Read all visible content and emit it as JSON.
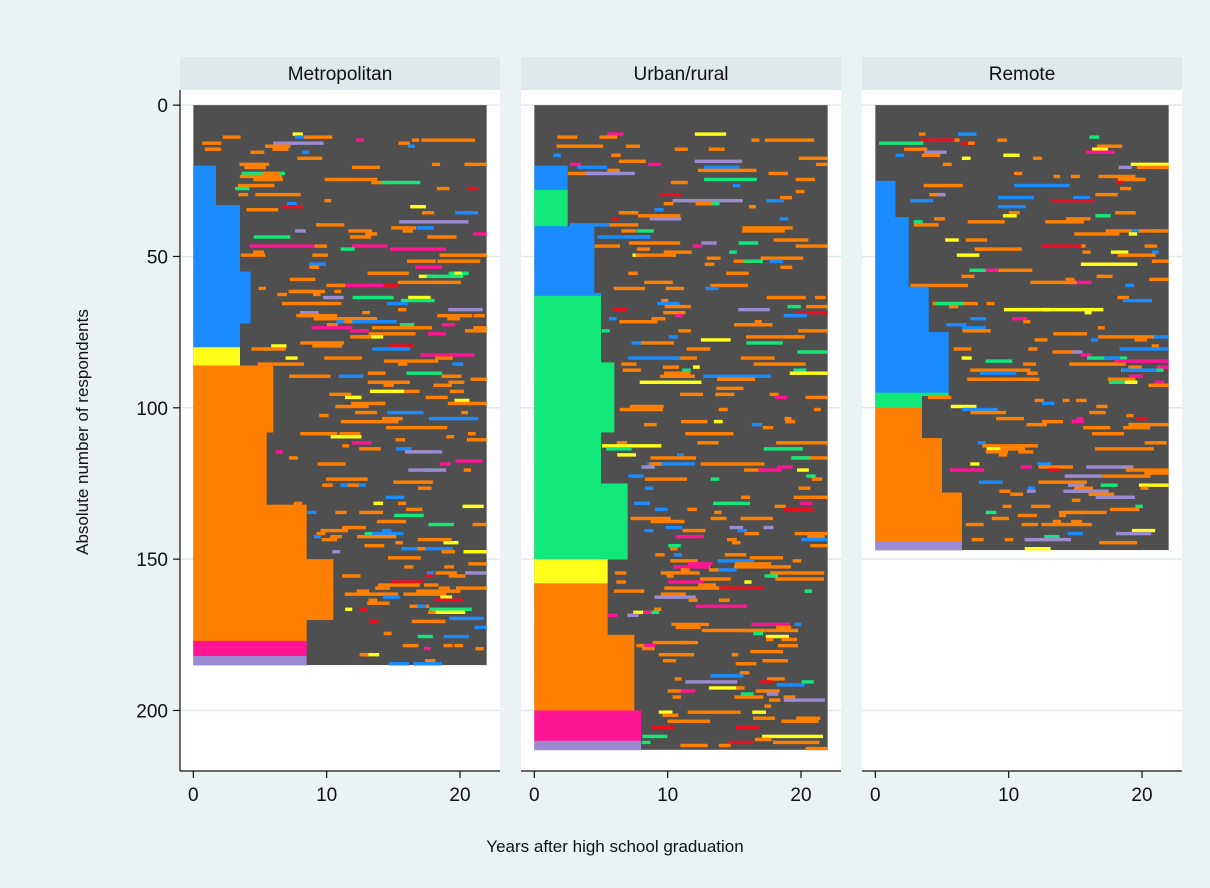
{
  "chart_data": {
    "type": "heatmap",
    "subtype": "sequence index plot (small multiples)",
    "xlabel": "Years after high school graduation",
    "ylabel": "Absolute number of respondents",
    "x_ticks": [
      0,
      10,
      20
    ],
    "y_ticks": [
      0,
      50,
      100,
      150,
      200
    ],
    "xlim": [
      -1,
      23
    ],
    "ylim": [
      220,
      -5
    ],
    "grid": "horizontal",
    "colors": {
      "background": "#eaf2f3",
      "plot_background": "#ffffff",
      "strip": "#dfe8ea",
      "gridline": "#e0e9eb",
      "dominant_state": "#4f4f4f"
    },
    "state_colors": [
      "#4f4f4f",
      "#ff7f00",
      "#1a8cff",
      "#12e87a",
      "#ffff1a",
      "#ff1493",
      "#9b8bd0",
      "#e8101e"
    ],
    "panels": [
      {
        "title": "Metropolitan",
        "respondents": 185,
        "x_max": 22,
        "left_block_end": [
          {
            "from": 0,
            "to": 20,
            "value": 0
          },
          {
            "from": 20,
            "to": 33,
            "value": 1.7
          },
          {
            "from": 33,
            "to": 55,
            "value": 3.5
          },
          {
            "from": 55,
            "to": 72,
            "value": 4.3
          },
          {
            "from": 72,
            "to": 86,
            "value": 3.5
          },
          {
            "from": 86,
            "to": 108,
            "value": 6
          },
          {
            "from": 108,
            "to": 132,
            "value": 5.5
          },
          {
            "from": 132,
            "to": 150,
            "value": 8.5
          },
          {
            "from": 150,
            "to": 170,
            "value": 10.5
          },
          {
            "from": 170,
            "to": 185,
            "value": 8.5
          }
        ],
        "left_block_states": [
          {
            "from": 20,
            "to": 33,
            "color": "#1a8cff"
          },
          {
            "from": 33,
            "to": 80,
            "color": "#1a8cff"
          },
          {
            "from": 80,
            "to": 86,
            "color": "#ffff1a"
          },
          {
            "from": 86,
            "to": 177,
            "color": "#ff7f00"
          },
          {
            "from": 177,
            "to": 182,
            "color": "#ff1493"
          },
          {
            "from": 182,
            "to": 185,
            "color": "#9b8bd0"
          }
        ],
        "seed": 11
      },
      {
        "title": "Urban/rural",
        "respondents": 213,
        "x_max": 22,
        "left_block_end": [
          {
            "from": 0,
            "to": 20,
            "value": 0
          },
          {
            "from": 20,
            "to": 40,
            "value": 2.5
          },
          {
            "from": 40,
            "to": 62,
            "value": 4.5
          },
          {
            "from": 62,
            "to": 85,
            "value": 5
          },
          {
            "from": 85,
            "to": 108,
            "value": 6
          },
          {
            "from": 108,
            "to": 125,
            "value": 5
          },
          {
            "from": 125,
            "to": 150,
            "value": 7
          },
          {
            "from": 150,
            "to": 175,
            "value": 5.5
          },
          {
            "from": 175,
            "to": 200,
            "value": 7.5
          },
          {
            "from": 200,
            "to": 213,
            "value": 8
          }
        ],
        "left_block_states": [
          {
            "from": 20,
            "to": 28,
            "color": "#1a8cff"
          },
          {
            "from": 28,
            "to": 40,
            "color": "#12e87a"
          },
          {
            "from": 40,
            "to": 63,
            "color": "#1a8cff"
          },
          {
            "from": 63,
            "to": 150,
            "color": "#12e87a"
          },
          {
            "from": 150,
            "to": 158,
            "color": "#ffff1a"
          },
          {
            "from": 158,
            "to": 200,
            "color": "#ff7f00"
          },
          {
            "from": 200,
            "to": 210,
            "color": "#ff1493"
          },
          {
            "from": 210,
            "to": 213,
            "color": "#9b8bd0"
          }
        ],
        "seed": 23
      },
      {
        "title": "Remote",
        "respondents": 147,
        "x_max": 22,
        "left_block_end": [
          {
            "from": 0,
            "to": 25,
            "value": 0
          },
          {
            "from": 25,
            "to": 37,
            "value": 1.5
          },
          {
            "from": 37,
            "to": 60,
            "value": 2.5
          },
          {
            "from": 60,
            "to": 75,
            "value": 4
          },
          {
            "from": 75,
            "to": 96,
            "value": 5.5
          },
          {
            "from": 96,
            "to": 110,
            "value": 3.5
          },
          {
            "from": 110,
            "to": 128,
            "value": 5
          },
          {
            "from": 128,
            "to": 147,
            "value": 6.5
          }
        ],
        "left_block_states": [
          {
            "from": 25,
            "to": 37,
            "color": "#1a8cff"
          },
          {
            "from": 37,
            "to": 95,
            "color": "#1a8cff"
          },
          {
            "from": 95,
            "to": 100,
            "color": "#12e87a"
          },
          {
            "from": 100,
            "to": 144,
            "color": "#ff7f00"
          },
          {
            "from": 144,
            "to": 147,
            "color": "#9b8bd0"
          }
        ],
        "seed": 37
      }
    ]
  }
}
